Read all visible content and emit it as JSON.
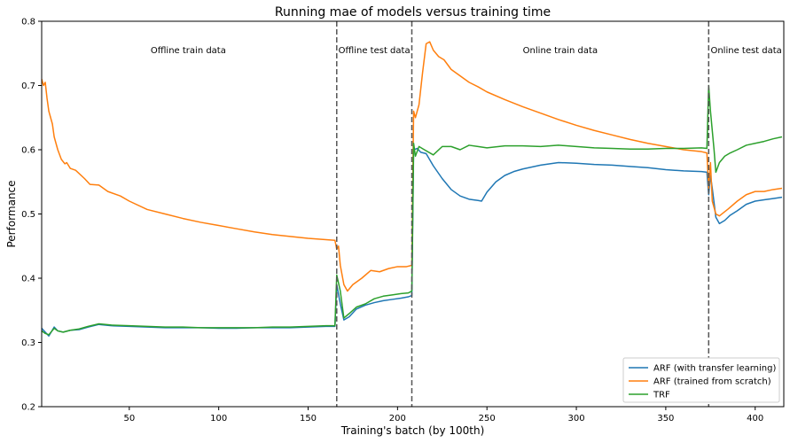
{
  "chart_data": {
    "type": "line",
    "title": "Running mae of models versus training time",
    "xlabel": "Training's batch (by 100th)",
    "ylabel": "Performance",
    "xlim": [
      1,
      416
    ],
    "ylim": [
      0.2,
      0.8
    ],
    "xticks": [
      50,
      100,
      150,
      200,
      250,
      300,
      350,
      400
    ],
    "yticks": [
      0.2,
      0.3,
      0.4,
      0.5,
      0.6,
      0.7,
      0.8
    ],
    "xtick_labels": [
      "50",
      "100",
      "150",
      "200",
      "250",
      "300",
      "350",
      "400"
    ],
    "ytick_labels": [
      "0.2",
      "0.3",
      "0.4",
      "0.5",
      "0.6",
      "0.7",
      "0.8"
    ],
    "grid": false,
    "legend_position": "bottom-right",
    "vlines": [
      166,
      208,
      374
    ],
    "regions": [
      {
        "label": "Offline train data",
        "x": 83
      },
      {
        "label": "Offline test data",
        "x": 187
      },
      {
        "label": "Online train data",
        "x": 291
      },
      {
        "label": "Online test data",
        "x": 395
      }
    ],
    "series": [
      {
        "name": "ARF (with transfer learning)",
        "color": "#1f77b4",
        "points": [
          [
            1,
            0.322
          ],
          [
            3,
            0.316
          ],
          [
            5,
            0.31
          ],
          [
            8,
            0.324
          ],
          [
            10,
            0.318
          ],
          [
            13,
            0.316
          ],
          [
            17,
            0.319
          ],
          [
            22,
            0.32
          ],
          [
            27,
            0.324
          ],
          [
            33,
            0.328
          ],
          [
            40,
            0.326
          ],
          [
            50,
            0.325
          ],
          [
            60,
            0.324
          ],
          [
            70,
            0.323
          ],
          [
            80,
            0.323
          ],
          [
            90,
            0.323
          ],
          [
            100,
            0.322
          ],
          [
            110,
            0.322
          ],
          [
            120,
            0.323
          ],
          [
            130,
            0.323
          ],
          [
            140,
            0.323
          ],
          [
            150,
            0.324
          ],
          [
            160,
            0.325
          ],
          [
            165,
            0.325
          ],
          [
            166,
            0.39
          ],
          [
            168,
            0.36
          ],
          [
            170,
            0.335
          ],
          [
            173,
            0.34
          ],
          [
            177,
            0.352
          ],
          [
            182,
            0.358
          ],
          [
            187,
            0.362
          ],
          [
            192,
            0.365
          ],
          [
            197,
            0.367
          ],
          [
            202,
            0.369
          ],
          [
            206,
            0.371
          ],
          [
            208,
            0.373
          ],
          [
            209,
            0.6
          ],
          [
            211,
            0.602
          ],
          [
            213,
            0.596
          ],
          [
            216,
            0.594
          ],
          [
            220,
            0.575
          ],
          [
            225,
            0.555
          ],
          [
            230,
            0.538
          ],
          [
            235,
            0.528
          ],
          [
            240,
            0.523
          ],
          [
            245,
            0.521
          ],
          [
            247,
            0.52
          ],
          [
            250,
            0.534
          ],
          [
            255,
            0.55
          ],
          [
            260,
            0.56
          ],
          [
            265,
            0.566
          ],
          [
            270,
            0.57
          ],
          [
            280,
            0.576
          ],
          [
            290,
            0.58
          ],
          [
            300,
            0.579
          ],
          [
            310,
            0.577
          ],
          [
            320,
            0.576
          ],
          [
            330,
            0.574
          ],
          [
            340,
            0.572
          ],
          [
            350,
            0.569
          ],
          [
            360,
            0.567
          ],
          [
            370,
            0.566
          ],
          [
            373,
            0.565
          ],
          [
            374,
            0.53
          ],
          [
            375,
            0.56
          ],
          [
            376,
            0.54
          ],
          [
            378,
            0.495
          ],
          [
            380,
            0.485
          ],
          [
            383,
            0.49
          ],
          [
            386,
            0.498
          ],
          [
            390,
            0.505
          ],
          [
            395,
            0.515
          ],
          [
            400,
            0.52
          ],
          [
            405,
            0.522
          ],
          [
            410,
            0.524
          ],
          [
            415,
            0.526
          ]
        ]
      },
      {
        "name": "ARF (trained from scratch)",
        "color": "#ff7f0e",
        "points": [
          [
            1,
            0.71
          ],
          [
            2,
            0.7
          ],
          [
            3,
            0.705
          ],
          [
            4,
            0.68
          ],
          [
            5,
            0.66
          ],
          [
            7,
            0.64
          ],
          [
            8,
            0.62
          ],
          [
            10,
            0.6
          ],
          [
            12,
            0.585
          ],
          [
            14,
            0.578
          ],
          [
            15,
            0.58
          ],
          [
            17,
            0.571
          ],
          [
            20,
            0.568
          ],
          [
            25,
            0.555
          ],
          [
            28,
            0.546
          ],
          [
            33,
            0.545
          ],
          [
            38,
            0.535
          ],
          [
            45,
            0.528
          ],
          [
            50,
            0.52
          ],
          [
            60,
            0.507
          ],
          [
            70,
            0.5
          ],
          [
            80,
            0.493
          ],
          [
            90,
            0.487
          ],
          [
            100,
            0.482
          ],
          [
            110,
            0.477
          ],
          [
            120,
            0.472
          ],
          [
            130,
            0.468
          ],
          [
            140,
            0.465
          ],
          [
            150,
            0.462
          ],
          [
            160,
            0.46
          ],
          [
            165,
            0.459
          ],
          [
            166,
            0.445
          ],
          [
            167,
            0.45
          ],
          [
            168,
            0.42
          ],
          [
            170,
            0.39
          ],
          [
            172,
            0.38
          ],
          [
            175,
            0.39
          ],
          [
            180,
            0.4
          ],
          [
            185,
            0.412
          ],
          [
            190,
            0.41
          ],
          [
            195,
            0.415
          ],
          [
            200,
            0.418
          ],
          [
            205,
            0.418
          ],
          [
            208,
            0.42
          ],
          [
            209,
            0.66
          ],
          [
            210,
            0.65
          ],
          [
            212,
            0.67
          ],
          [
            214,
            0.72
          ],
          [
            216,
            0.765
          ],
          [
            218,
            0.768
          ],
          [
            220,
            0.755
          ],
          [
            223,
            0.745
          ],
          [
            226,
            0.74
          ],
          [
            230,
            0.725
          ],
          [
            235,
            0.715
          ],
          [
            240,
            0.705
          ],
          [
            245,
            0.698
          ],
          [
            250,
            0.69
          ],
          [
            260,
            0.678
          ],
          [
            270,
            0.667
          ],
          [
            280,
            0.657
          ],
          [
            290,
            0.647
          ],
          [
            300,
            0.638
          ],
          [
            310,
            0.63
          ],
          [
            320,
            0.623
          ],
          [
            330,
            0.616
          ],
          [
            340,
            0.61
          ],
          [
            350,
            0.605
          ],
          [
            360,
            0.6
          ],
          [
            370,
            0.597
          ],
          [
            373,
            0.595
          ],
          [
            374,
            0.54
          ],
          [
            375,
            0.58
          ],
          [
            376,
            0.52
          ],
          [
            378,
            0.5
          ],
          [
            380,
            0.497
          ],
          [
            385,
            0.508
          ],
          [
            390,
            0.52
          ],
          [
            395,
            0.53
          ],
          [
            400,
            0.535
          ],
          [
            405,
            0.535
          ],
          [
            410,
            0.538
          ],
          [
            415,
            0.54
          ]
        ]
      },
      {
        "name": "TRF",
        "color": "#2ca02c",
        "points": [
          [
            1,
            0.318
          ],
          [
            3,
            0.314
          ],
          [
            5,
            0.312
          ],
          [
            8,
            0.322
          ],
          [
            10,
            0.318
          ],
          [
            13,
            0.316
          ],
          [
            17,
            0.319
          ],
          [
            22,
            0.321
          ],
          [
            27,
            0.325
          ],
          [
            33,
            0.329
          ],
          [
            40,
            0.327
          ],
          [
            50,
            0.326
          ],
          [
            60,
            0.325
          ],
          [
            70,
            0.324
          ],
          [
            80,
            0.324
          ],
          [
            90,
            0.323
          ],
          [
            100,
            0.323
          ],
          [
            110,
            0.323
          ],
          [
            120,
            0.323
          ],
          [
            130,
            0.324
          ],
          [
            140,
            0.324
          ],
          [
            150,
            0.325
          ],
          [
            160,
            0.326
          ],
          [
            165,
            0.326
          ],
          [
            166,
            0.405
          ],
          [
            168,
            0.38
          ],
          [
            170,
            0.338
          ],
          [
            173,
            0.345
          ],
          [
            177,
            0.355
          ],
          [
            182,
            0.36
          ],
          [
            187,
            0.368
          ],
          [
            192,
            0.372
          ],
          [
            197,
            0.374
          ],
          [
            202,
            0.376
          ],
          [
            206,
            0.377
          ],
          [
            208,
            0.38
          ],
          [
            209,
            0.61
          ],
          [
            210,
            0.59
          ],
          [
            212,
            0.605
          ],
          [
            215,
            0.6
          ],
          [
            220,
            0.592
          ],
          [
            225,
            0.605
          ],
          [
            230,
            0.605
          ],
          [
            235,
            0.6
          ],
          [
            240,
            0.607
          ],
          [
            245,
            0.605
          ],
          [
            250,
            0.603
          ],
          [
            260,
            0.606
          ],
          [
            270,
            0.606
          ],
          [
            280,
            0.605
          ],
          [
            290,
            0.607
          ],
          [
            300,
            0.605
          ],
          [
            310,
            0.603
          ],
          [
            320,
            0.602
          ],
          [
            330,
            0.601
          ],
          [
            340,
            0.601
          ],
          [
            350,
            0.602
          ],
          [
            360,
            0.602
          ],
          [
            370,
            0.603
          ],
          [
            373,
            0.602
          ],
          [
            374,
            0.7
          ],
          [
            375,
            0.66
          ],
          [
            377,
            0.6
          ],
          [
            378,
            0.565
          ],
          [
            380,
            0.58
          ],
          [
            383,
            0.59
          ],
          [
            386,
            0.595
          ],
          [
            390,
            0.6
          ],
          [
            395,
            0.607
          ],
          [
            400,
            0.61
          ],
          [
            405,
            0.613
          ],
          [
            410,
            0.617
          ],
          [
            415,
            0.62
          ]
        ]
      }
    ]
  }
}
